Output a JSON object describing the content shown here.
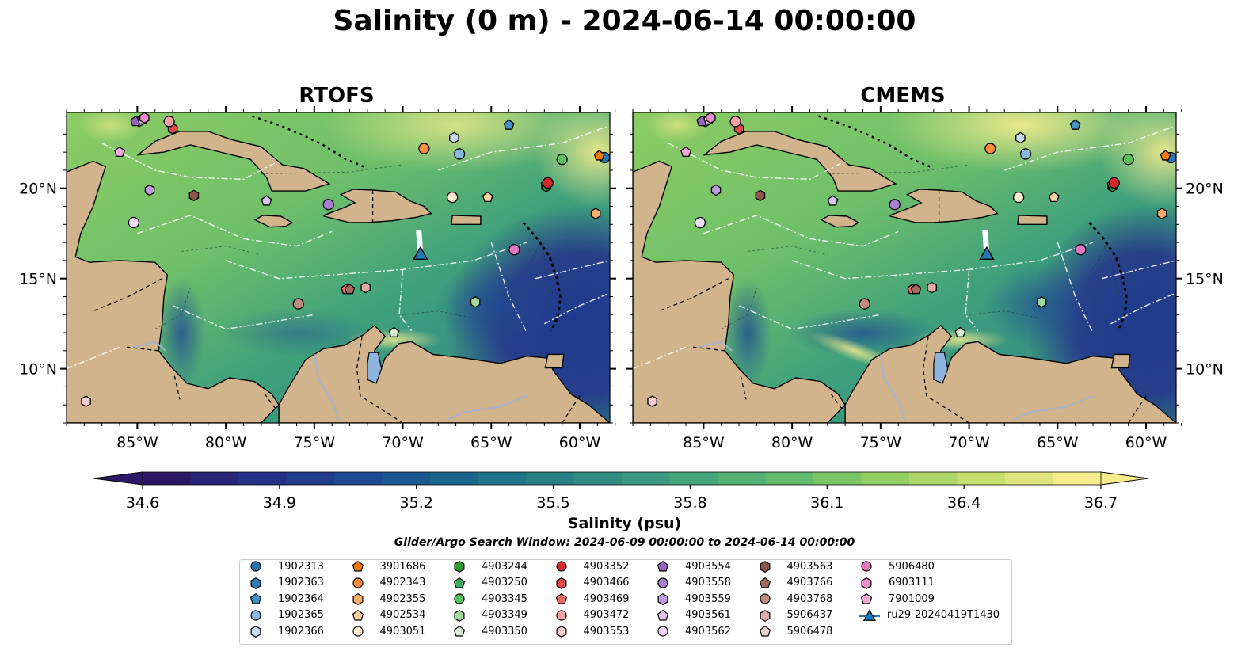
{
  "title": "Salinity (0 m) - 2024-06-14 00:00:00",
  "panels": [
    {
      "title": "RTOFS"
    },
    {
      "title": "CMEMS"
    }
  ],
  "axes": {
    "x_ticks": [
      "85°W",
      "80°W",
      "75°W",
      "70°W",
      "65°W",
      "60°W"
    ],
    "x_tick_values": [
      -85,
      -80,
      -75,
      -70,
      -65,
      -60
    ],
    "y_ticks": [
      "20°N",
      "15°N",
      "10°N"
    ],
    "y_tick_values": [
      20,
      15,
      10
    ],
    "lon_range": [
      -89,
      -58.3
    ],
    "lat_range": [
      7,
      24.2
    ]
  },
  "colorbar": {
    "label": "Salinity (psu)",
    "ticks": [
      "34.6",
      "34.9",
      "35.2",
      "35.5",
      "35.8",
      "36.1",
      "36.4",
      "36.7"
    ],
    "range": [
      34.6,
      36.7
    ],
    "colors": [
      "#2a1a66",
      "#25318a",
      "#1f4c94",
      "#1a6a8a",
      "#2c8583",
      "#3fa07c",
      "#5db872",
      "#8ccc63",
      "#c4de6e",
      "#f6ec8e"
    ],
    "extend": "both"
  },
  "search_window": "Glider/Argo Search Window: 2024-06-09 00:00:00 to 2024-06-14 00:00:00",
  "map_colors": {
    "land": "#d2b48c",
    "deep_low_salinity": "#2a1a66",
    "mid_salinity": "#3fa07c",
    "high_salinity": "#f6ec8e",
    "rivers": "#a5b5d0"
  },
  "legend": [
    {
      "label": "1902313",
      "marker": "circle",
      "color": "#1f77b4"
    },
    {
      "label": "1902363",
      "marker": "hexagon",
      "color": "#2a7fb9"
    },
    {
      "label": "1902364",
      "marker": "pentagon",
      "color": "#4292c6"
    },
    {
      "label": "1902365",
      "marker": "circle",
      "color": "#86b8e3"
    },
    {
      "label": "1902366",
      "marker": "hexagon",
      "color": "#c6dbef"
    },
    {
      "label": "3901686",
      "marker": "pentagon",
      "color": "#f57c00"
    },
    {
      "label": "4902343",
      "marker": "circle",
      "color": "#fd8d3c"
    },
    {
      "label": "4902355",
      "marker": "hexagon",
      "color": "#fdae6b"
    },
    {
      "label": "4902534",
      "marker": "pentagon",
      "color": "#fdd0a2"
    },
    {
      "label": "4903051",
      "marker": "circle",
      "color": "#feebd2"
    },
    {
      "label": "4903244",
      "marker": "hexagon",
      "color": "#2ca02c"
    },
    {
      "label": "4903250",
      "marker": "pentagon",
      "color": "#41ab5d"
    },
    {
      "label": "4903345",
      "marker": "circle",
      "color": "#5cc05c"
    },
    {
      "label": "4903349",
      "marker": "hexagon",
      "color": "#a1d99b"
    },
    {
      "label": "4903350",
      "marker": "pentagon",
      "color": "#d9f0d3"
    },
    {
      "label": "4903352",
      "marker": "circle",
      "color": "#d62728"
    },
    {
      "label": "4903466",
      "marker": "hexagon",
      "color": "#e34a4a"
    },
    {
      "label": "4903469",
      "marker": "pentagon",
      "color": "#ef6b6b"
    },
    {
      "label": "4903472",
      "marker": "circle",
      "color": "#f4a2a2"
    },
    {
      "label": "4903553",
      "marker": "hexagon",
      "color": "#fcd0d0"
    },
    {
      "label": "4903554",
      "marker": "pentagon",
      "color": "#9467bd"
    },
    {
      "label": "4903558",
      "marker": "circle",
      "color": "#a77fd0"
    },
    {
      "label": "4903559",
      "marker": "hexagon",
      "color": "#bc9ee0"
    },
    {
      "label": "4903561",
      "marker": "pentagon",
      "color": "#d8c4f0"
    },
    {
      "label": "4903562",
      "marker": "circle",
      "color": "#ecdcf8"
    },
    {
      "label": "4903563",
      "marker": "hexagon",
      "color": "#8c564b"
    },
    {
      "label": "4903766",
      "marker": "pentagon",
      "color": "#a36a5e"
    },
    {
      "label": "4903768",
      "marker": "circle",
      "color": "#c08a7e"
    },
    {
      "label": "5906437",
      "marker": "hexagon",
      "color": "#e0ada4"
    },
    {
      "label": "5906478",
      "marker": "pentagon",
      "color": "#f4d3cc"
    },
    {
      "label": "5906480",
      "marker": "circle",
      "color": "#e377c2"
    },
    {
      "label": "6903111",
      "marker": "hexagon",
      "color": "#ea8ccd"
    },
    {
      "label": "7901009",
      "marker": "pentagon",
      "color": "#f4a8dc"
    },
    {
      "label": "ru29-20240419T1430",
      "marker": "triangle-line",
      "color": "#1f77b4"
    }
  ],
  "floats": [
    {
      "id": "1902313",
      "lon": -58.6,
      "lat": 21.7
    },
    {
      "id": "1902363",
      "lon": -84.9,
      "lat": 23.7
    },
    {
      "id": "1902364",
      "lon": -64.0,
      "lat": 23.5
    },
    {
      "id": "1902365",
      "lon": -66.8,
      "lat": 21.9
    },
    {
      "id": "1902366",
      "lon": -67.1,
      "lat": 22.8
    },
    {
      "id": "3901686",
      "lon": -58.9,
      "lat": 21.8
    },
    {
      "id": "4902343",
      "lon": -68.8,
      "lat": 22.2
    },
    {
      "id": "4902355",
      "lon": -59.1,
      "lat": 18.6
    },
    {
      "id": "4902534",
      "lon": -65.2,
      "lat": 19.5
    },
    {
      "id": "4903051",
      "lon": -67.2,
      "lat": 19.5
    },
    {
      "id": "4903244",
      "lon": -61.9,
      "lat": 20.1
    },
    {
      "id": "4903250",
      "lon": -61.9,
      "lat": 20.2
    },
    {
      "id": "4903345",
      "lon": -61.0,
      "lat": 21.6
    },
    {
      "id": "4903349",
      "lon": -65.9,
      "lat": 13.7
    },
    {
      "id": "4903350",
      "lon": -70.5,
      "lat": 12.0
    },
    {
      "id": "4903352",
      "lon": -61.8,
      "lat": 20.3
    },
    {
      "id": "4903466",
      "lon": -83.0,
      "lat": 23.3
    },
    {
      "id": "4903469",
      "lon": -73.2,
      "lat": 14.4
    },
    {
      "id": "4903472",
      "lon": -83.2,
      "lat": 23.7
    },
    {
      "id": "4903553",
      "lon": -87.9,
      "lat": 8.2
    },
    {
      "id": "4903554",
      "lon": -85.1,
      "lat": 23.7
    },
    {
      "id": "4903558",
      "lon": -74.2,
      "lat": 19.1
    },
    {
      "id": "4903559",
      "lon": -84.3,
      "lat": 19.9
    },
    {
      "id": "4903561",
      "lon": -77.7,
      "lat": 19.3
    },
    {
      "id": "4903562",
      "lon": -85.2,
      "lat": 18.1
    },
    {
      "id": "4903563",
      "lon": -81.8,
      "lat": 19.6
    },
    {
      "id": "4903766",
      "lon": -73.0,
      "lat": 14.4
    },
    {
      "id": "4903768",
      "lon": -75.9,
      "lat": 13.6
    },
    {
      "id": "5906437",
      "lon": -72.1,
      "lat": 14.5
    },
    {
      "id": "5906478",
      "lon": -84.7,
      "lat": 23.8
    },
    {
      "id": "5906480",
      "lon": -63.7,
      "lat": 16.6
    },
    {
      "id": "6903111",
      "lon": -84.6,
      "lat": 23.9
    },
    {
      "id": "7901009",
      "lon": -86.0,
      "lat": 22.0
    }
  ],
  "glider": {
    "id": "ru29-20240419T1430",
    "track": [
      [
        -69.1,
        17.7
      ],
      [
        -69.05,
        17.0
      ],
      [
        -69.0,
        16.3
      ]
    ],
    "lon": -69.0,
    "lat": 16.3
  }
}
